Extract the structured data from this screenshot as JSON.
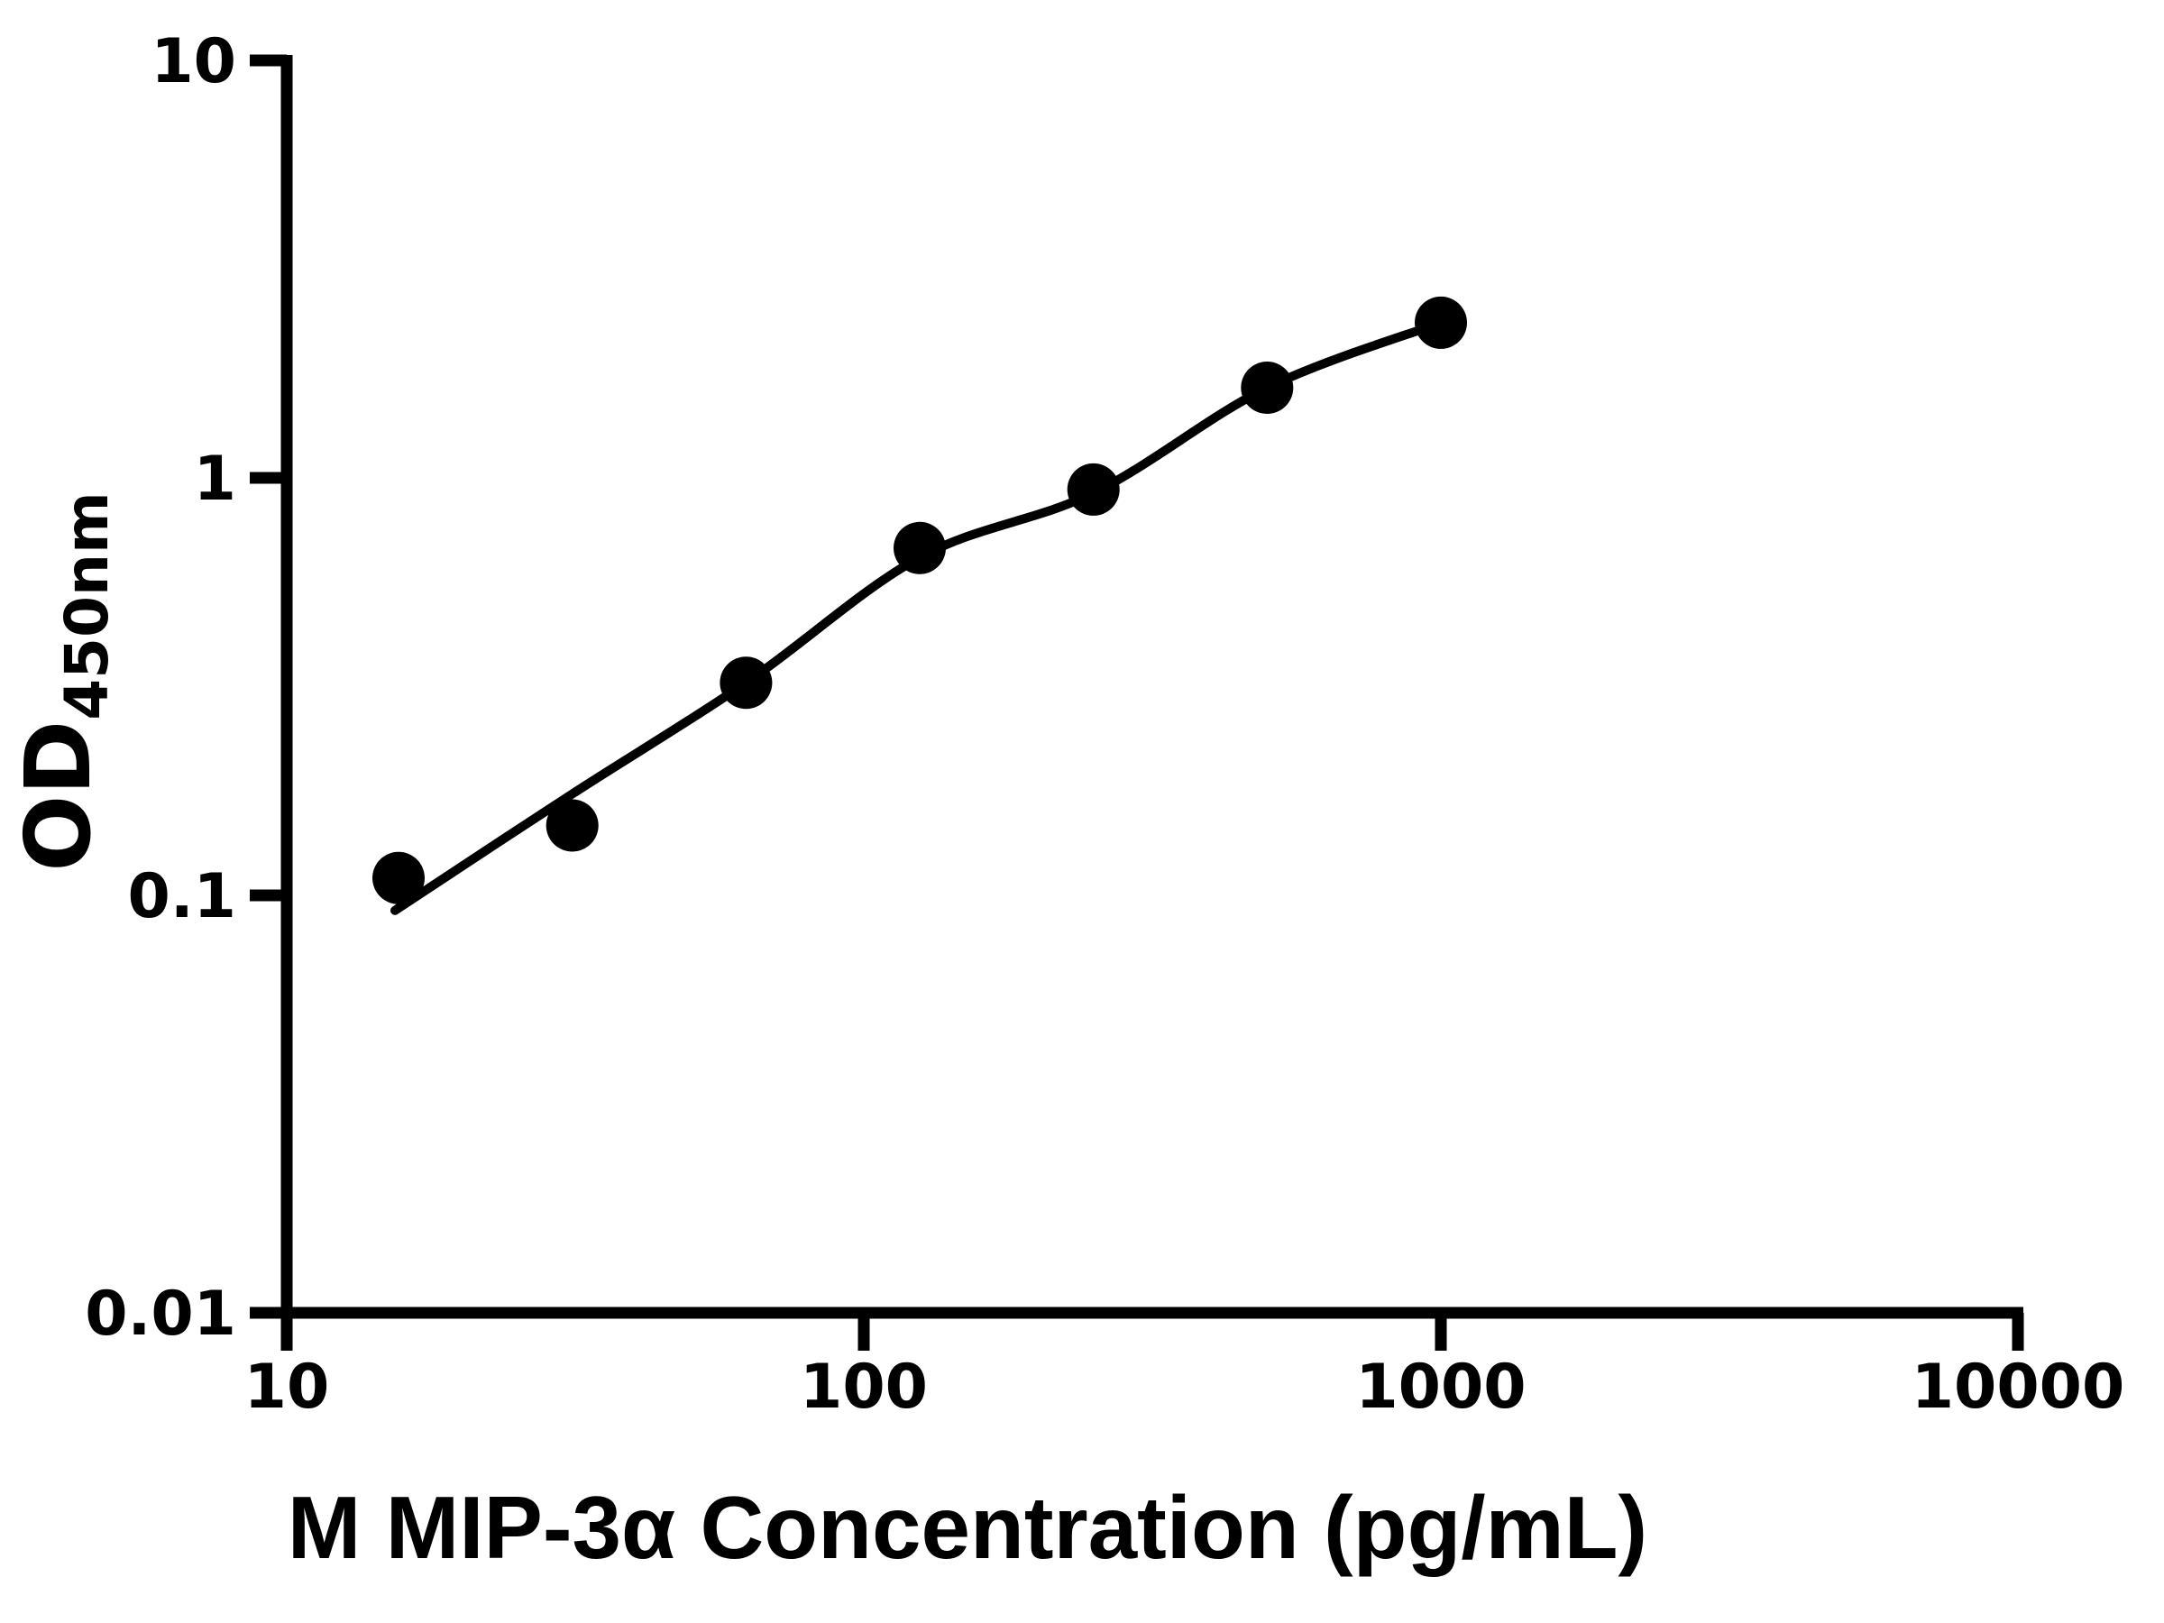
{
  "page": {
    "background": "#ffffff"
  },
  "chart_data": {
    "type": "scatter",
    "title": "",
    "xlabel": "M MIP-3α Concentration (pg/mL)",
    "ylabel": {
      "main": "OD",
      "sub": "450nm"
    },
    "x_scale": "log",
    "y_scale": "log",
    "xlim": [
      10,
      10000
    ],
    "ylim": [
      0.01,
      10
    ],
    "grid": false,
    "legend": false,
    "x_ticks": [
      {
        "v": 10,
        "label": "10"
      },
      {
        "v": 100,
        "label": "100"
      },
      {
        "v": 1000,
        "label": "1000"
      },
      {
        "v": 10000,
        "label": "10000"
      }
    ],
    "y_ticks": [
      {
        "v": 0.01,
        "label": "0.01"
      },
      {
        "v": 0.1,
        "label": "0.1"
      },
      {
        "v": 1,
        "label": "1"
      },
      {
        "v": 10,
        "label": "10"
      }
    ],
    "series": [
      {
        "name": "standard-curve-points",
        "marker": "circle",
        "points": [
          {
            "x": 15.625,
            "y": 0.11
          },
          {
            "x": 31.25,
            "y": 0.147
          },
          {
            "x": 62.5,
            "y": 0.323
          },
          {
            "x": 125,
            "y": 0.679
          },
          {
            "x": 250,
            "y": 0.938
          },
          {
            "x": 500,
            "y": 1.644
          },
          {
            "x": 1000,
            "y": 2.353
          }
        ]
      }
    ],
    "fit_curve": [
      [
        15.4,
        0.092
      ],
      [
        31.25,
        0.175
      ],
      [
        62.5,
        0.323
      ],
      [
        125,
        0.645
      ],
      [
        250,
        0.92
      ],
      [
        500,
        1.644
      ],
      [
        1000,
        2.353
      ]
    ],
    "colors": {
      "axis": "#000000",
      "marker": "#000000",
      "curve": "#000000",
      "text": "#000000",
      "background": "#ffffff"
    }
  }
}
